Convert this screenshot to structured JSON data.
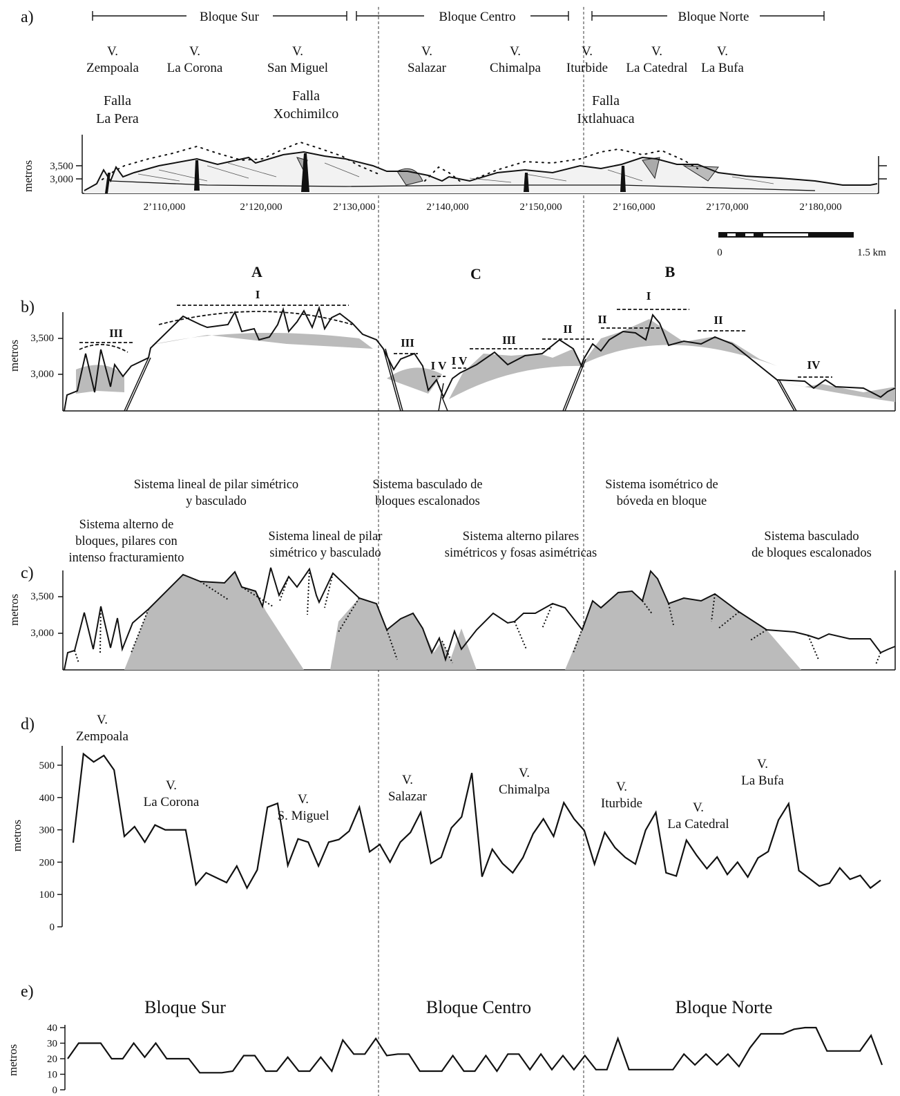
{
  "panels": {
    "a": "a)",
    "b": "b)",
    "c": "c)",
    "d": "d)",
    "e": "e)"
  },
  "panel_a": {
    "blocks": [
      "Bloque Sur",
      "Bloque Centro",
      "Bloque Norte"
    ],
    "volcanoes": [
      {
        "v": "V.",
        "name": "Zempoala"
      },
      {
        "v": "V.",
        "name": "La Corona"
      },
      {
        "v": "V.",
        "name": "San Miguel"
      },
      {
        "v": "V.",
        "name": "Salazar"
      },
      {
        "v": "V.",
        "name": "Chimalpa"
      },
      {
        "v": "V.",
        "name": "Iturbide"
      },
      {
        "v": "V.",
        "name": "La Catedral"
      },
      {
        "v": "V.",
        "name": "La Bufa"
      }
    ],
    "faults": [
      {
        "l1": "Falla",
        "l2": "La Pera"
      },
      {
        "l1": "Falla",
        "l2": "Xochimilco"
      },
      {
        "l1": "Falla",
        "l2": "Ixtlahuaca"
      }
    ],
    "y_ticks": [
      "3,500",
      "3,000"
    ],
    "ylabel": "metros",
    "x_ticks": [
      "2’110,000",
      "2’120,000",
      "2’130,000",
      "2’140,000",
      "2’150,000",
      "2’160,000",
      "2’170,000",
      "2’180,000"
    ],
    "scale": {
      "min": "0",
      "max": "1.5 km"
    }
  },
  "panel_b": {
    "sections": [
      "A",
      "C",
      "B"
    ],
    "levels": [
      "III",
      "I",
      "III",
      "I V",
      "I V",
      "III",
      "II",
      "II",
      "I",
      "II",
      "IV"
    ],
    "y_ticks": [
      "3,500",
      "3,000"
    ],
    "ylabel": "metros"
  },
  "panel_c": {
    "systems": [
      {
        "l1": "Sistema lineal de pilar simétrico",
        "l2": "y basculado"
      },
      {
        "l1": "Sistema basculado de",
        "l2": "bloques escalonados"
      },
      {
        "l1": "Sistema isométrico de",
        "l2": "bóveda en bloque"
      },
      {
        "l1": "Sistema alterno de",
        "l2": "bloques, pilares con",
        "l3": "intenso fracturamiento"
      },
      {
        "l1": "Sistema lineal de pilar",
        "l2": "simétrico y basculado"
      },
      {
        "l1": "Sistema alterno pilares",
        "l2": "simétricos y fosas asimétricas"
      },
      {
        "l1": "Sistema basculado",
        "l2": "de bloques escalonados"
      }
    ],
    "y_ticks": [
      "3,500",
      "3,000"
    ],
    "ylabel": "metros"
  },
  "panel_d": {
    "ylabel": "metros",
    "y_ticks": [
      "500",
      "400",
      "300",
      "200",
      "100",
      "0"
    ],
    "labels": [
      {
        "v": "V.",
        "name": "Zempoala"
      },
      {
        "v": "V.",
        "name": "La Corona"
      },
      {
        "v": "V.",
        "name": "S. Miguel"
      },
      {
        "v": "V.",
        "name": "Salazar"
      },
      {
        "v": "V.",
        "name": "Chimalpa"
      },
      {
        "v": "V.",
        "name": "Iturbide"
      },
      {
        "v": "V.",
        "name": "La Catedral"
      },
      {
        "v": "V.",
        "name": "La Bufa"
      }
    ]
  },
  "panel_e": {
    "ylabel": "metros",
    "y_ticks": [
      "40",
      "30",
      "20",
      "10",
      "0"
    ],
    "blocks": [
      "Bloque Sur",
      "Bloque Centro",
      "Bloque Norte"
    ]
  },
  "chart_data": [
    {
      "type": "line",
      "panel": "d",
      "ylabel": "metros",
      "ylim": [
        0,
        550
      ],
      "y": [
        260,
        535,
        510,
        530,
        485,
        280,
        310,
        262,
        315,
        300,
        300,
        300,
        130,
        167,
        152,
        137,
        188,
        120,
        176,
        370,
        382,
        190,
        272,
        262,
        188,
        262,
        270,
        296,
        370,
        232,
        255,
        200,
        262,
        292,
        354,
        196,
        215,
        306,
        340,
        476,
        155,
        240,
        196,
        167,
        214,
        288,
        334,
        280,
        384,
        334,
        298,
        194,
        292,
        245,
        215,
        194,
        299,
        354,
        167,
        157,
        268,
        221,
        180,
        216,
        162,
        200,
        154,
        213,
        233,
        330,
        381,
        174,
        150,
        126,
        135,
        182,
        147,
        159,
        120,
        144
      ]
    },
    {
      "type": "line",
      "panel": "e",
      "ylabel": "metros",
      "ylim": [
        0,
        40
      ],
      "y": [
        20,
        30,
        30,
        30,
        20,
        20,
        30,
        21,
        30,
        20,
        20,
        20,
        11,
        11,
        11,
        12,
        22,
        22,
        12,
        12,
        21,
        12,
        12,
        21,
        12,
        32,
        23,
        23,
        33,
        22,
        23,
        23,
        12,
        12,
        12,
        22,
        12,
        12,
        22,
        12,
        23,
        23,
        13,
        23,
        13,
        22,
        13,
        22,
        13,
        13,
        33,
        13,
        13,
        13,
        13,
        13,
        23,
        16,
        23,
        16,
        23,
        15,
        27,
        36,
        36,
        36,
        39,
        40,
        40,
        25,
        25,
        25,
        25,
        35,
        16
      ]
    }
  ]
}
